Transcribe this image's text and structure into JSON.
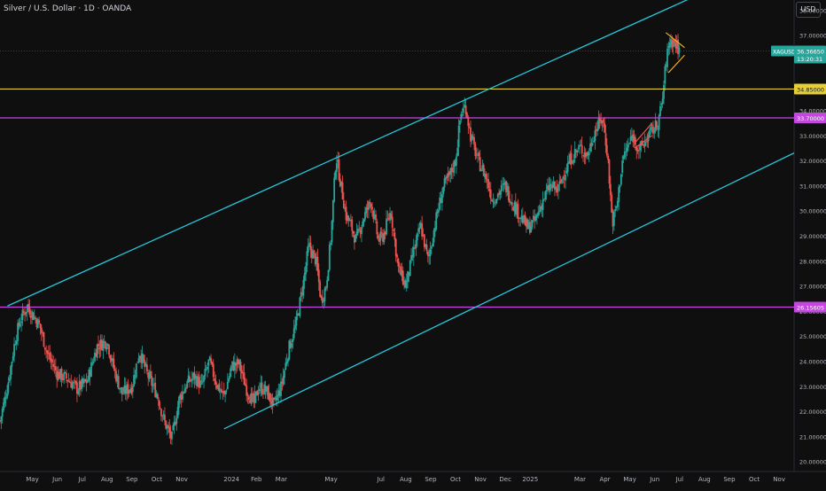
{
  "header": {
    "title": "Silver / U.S. Dollar · 1D · OANDA",
    "currency_button": "USD"
  },
  "chart_data": {
    "type": "candlestick",
    "symbol": "XAGUSD",
    "ylim": [
      19.6,
      38.4
    ],
    "y_ticks": [
      "20.00000",
      "21.00000",
      "22.00000",
      "23.00000",
      "24.00000",
      "25.00000",
      "26.00000",
      "27.00000",
      "28.00000",
      "29.00000",
      "30.00000",
      "31.00000",
      "32.00000",
      "33.00000",
      "34.00000",
      "35.00000",
      "36.00000",
      "37.00000",
      "38.00000"
    ],
    "x_ticks": [
      "May",
      "Jun",
      "Jul",
      "Aug",
      "Sep",
      "Oct",
      "Nov",
      "2024",
      "Feb",
      "Mar",
      "May",
      "Jul",
      "Aug",
      "Sep",
      "Oct",
      "Nov",
      "Dec",
      "2025",
      "Mar",
      "Apr",
      "May",
      "Jun",
      "Jul",
      "Aug",
      "Sep",
      "Oct",
      "Nov"
    ],
    "x_tick_months": [
      0,
      1,
      2,
      3,
      4,
      5,
      6,
      8,
      9,
      10,
      12,
      14,
      15,
      16,
      17,
      18,
      19,
      20,
      22,
      23,
      24,
      25,
      26,
      27,
      28,
      29,
      30
    ],
    "x_range_months": [
      -1.3,
      30.6
    ],
    "price_path": [
      [
        -1.3,
        21.6
      ],
      [
        -1.0,
        23.0
      ],
      [
        -0.7,
        24.8
      ],
      [
        -0.5,
        25.6
      ],
      [
        -0.2,
        26.2
      ],
      [
        0.3,
        25.4
      ],
      [
        0.6,
        24.3
      ],
      [
        1.0,
        23.5
      ],
      [
        1.4,
        23.3
      ],
      [
        1.8,
        22.9
      ],
      [
        2.2,
        23.2
      ],
      [
        2.6,
        24.6
      ],
      [
        3.0,
        24.8
      ],
      [
        3.3,
        23.6
      ],
      [
        3.6,
        22.7
      ],
      [
        4.0,
        23.0
      ],
      [
        4.3,
        24.4
      ],
      [
        4.6,
        23.5
      ],
      [
        5.0,
        22.7
      ],
      [
        5.3,
        21.6
      ],
      [
        5.6,
        20.9
      ],
      [
        5.9,
        22.5
      ],
      [
        6.2,
        23.1
      ],
      [
        6.5,
        23.4
      ],
      [
        6.8,
        23.0
      ],
      [
        7.1,
        24.0
      ],
      [
        7.4,
        23.1
      ],
      [
        7.7,
        22.6
      ],
      [
        8.0,
        23.8
      ],
      [
        8.3,
        23.9
      ],
      [
        8.6,
        22.9
      ],
      [
        8.9,
        22.3
      ],
      [
        9.1,
        23.0
      ],
      [
        9.4,
        22.8
      ],
      [
        9.7,
        22.2
      ],
      [
        10.0,
        23.0
      ],
      [
        10.3,
        24.5
      ],
      [
        10.6,
        25.5
      ],
      [
        10.9,
        27.2
      ],
      [
        11.1,
        28.6
      ],
      [
        11.4,
        28.0
      ],
      [
        11.6,
        26.4
      ],
      [
        11.8,
        27.0
      ],
      [
        12.0,
        29.0
      ],
      [
        12.2,
        32.2
      ],
      [
        12.4,
        31.0
      ],
      [
        12.6,
        29.8
      ],
      [
        12.8,
        29.4
      ],
      [
        13.0,
        28.8
      ],
      [
        13.3,
        29.7
      ],
      [
        13.6,
        30.4
      ],
      [
        13.9,
        28.8
      ],
      [
        14.1,
        29.0
      ],
      [
        14.4,
        30.0
      ],
      [
        14.7,
        27.7
      ],
      [
        15.0,
        27.0
      ],
      [
        15.3,
        28.3
      ],
      [
        15.6,
        29.4
      ],
      [
        15.9,
        28.0
      ],
      [
        16.2,
        29.6
      ],
      [
        16.5,
        30.9
      ],
      [
        16.8,
        31.5
      ],
      [
        17.0,
        32.0
      ],
      [
        17.2,
        33.8
      ],
      [
        17.4,
        34.2
      ],
      [
        17.6,
        33.0
      ],
      [
        17.9,
        32.0
      ],
      [
        18.2,
        31.4
      ],
      [
        18.5,
        30.4
      ],
      [
        18.8,
        30.8
      ],
      [
        19.0,
        31.0
      ],
      [
        19.3,
        30.3
      ],
      [
        19.6,
        29.8
      ],
      [
        19.9,
        29.3
      ],
      [
        20.2,
        29.6
      ],
      [
        20.5,
        30.4
      ],
      [
        20.8,
        31.0
      ],
      [
        21.1,
        30.8
      ],
      [
        21.4,
        31.6
      ],
      [
        21.7,
        32.2
      ],
      [
        22.0,
        32.5
      ],
      [
        22.3,
        32.2
      ],
      [
        22.6,
        33.2
      ],
      [
        22.9,
        33.7
      ],
      [
        23.1,
        32.3
      ],
      [
        23.3,
        29.5
      ],
      [
        23.5,
        30.3
      ],
      [
        23.7,
        32.0
      ],
      [
        23.9,
        32.5
      ],
      [
        24.1,
        33.0
      ],
      [
        24.4,
        32.4
      ],
      [
        24.7,
        32.9
      ],
      [
        24.9,
        33.2
      ],
      [
        25.1,
        33.4
      ],
      [
        25.3,
        34.3
      ],
      [
        25.45,
        35.9
      ],
      [
        25.6,
        36.8
      ],
      [
        25.8,
        36.7
      ],
      [
        26.0,
        36.37
      ]
    ],
    "channel_upper": [
      [
        -1.0,
        26.2
      ],
      [
        26.4,
        38.45
      ]
    ],
    "channel_lower": [
      [
        7.7,
        21.3
      ],
      [
        30.6,
        32.3
      ]
    ],
    "levels": [
      {
        "price": 34.85,
        "label": "34.85000",
        "color": "#e6ce36"
      },
      {
        "price": 33.7,
        "label": "33.70000",
        "color": "#c447e0"
      },
      {
        "price": 26.15605,
        "label": "26.15605",
        "color": "#c447e0"
      }
    ],
    "last_price": {
      "symbol": "XAGUSD",
      "price": 36.37,
      "label": "36.36650",
      "countdown": "13:20:31",
      "color": "#26a69a"
    },
    "annotations": {
      "orange_wedge": [
        [
          [
            25.45,
            37.1
          ],
          [
            26.2,
            36.5
          ]
        ],
        [
          [
            25.55,
            35.5
          ],
          [
            26.2,
            36.2
          ]
        ]
      ],
      "red_wedge": [
        [
          [
            24.2,
            32.7
          ],
          [
            24.9,
            33.5
          ]
        ],
        [
          [
            24.2,
            32.5
          ],
          [
            24.9,
            33.0
          ]
        ]
      ],
      "orange_color": "#f5a623",
      "red_color": "#ef5350"
    },
    "up_color": "#26a69a",
    "down_color": "#ef5350",
    "grid": false,
    "legend": "none"
  }
}
